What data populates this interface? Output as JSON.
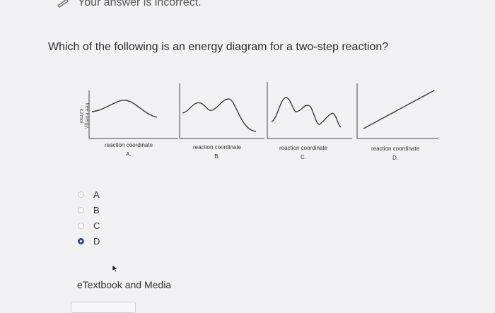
{
  "status": {
    "text": "Your answer is incorrect."
  },
  "question": {
    "text": "Which of the following is an energy diagram for a two-step reaction?"
  },
  "figure": {
    "ylabel_line1": "free energy,",
    "ylabel_line2": "kJ/mol",
    "diagrams": [
      {
        "xlabel": "reaction coordinate",
        "letter": "A."
      },
      {
        "xlabel": "reaction coordinate",
        "letter": "B."
      },
      {
        "xlabel": "reaction coordinate",
        "letter": "C."
      },
      {
        "xlabel": "reaction coordinate",
        "letter": "D."
      }
    ]
  },
  "options": [
    {
      "label": "A",
      "selected": false
    },
    {
      "label": "B",
      "selected": false
    },
    {
      "label": "C",
      "selected": false
    },
    {
      "label": "D",
      "selected": true
    }
  ],
  "resources": {
    "etextbook_label": "eTextbook and Media"
  },
  "colors": {
    "accent": "#2a4a9c",
    "curve": "#3a3a3a"
  }
}
